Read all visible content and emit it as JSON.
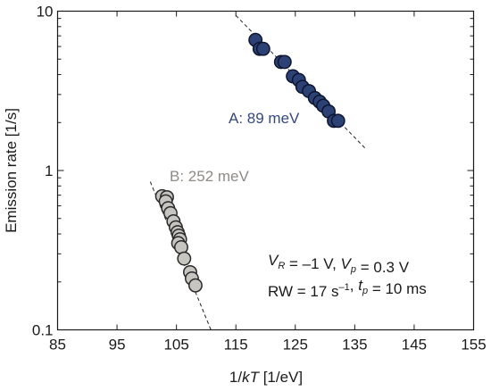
{
  "chart_data": {
    "type": "scatter",
    "title": "",
    "xlabel_pre": "1/",
    "xlabel_italic": "kT",
    "xlabel_post": " [1/eV]",
    "ylabel": "Emission rate [1/s]",
    "xscale": "linear",
    "yscale": "log",
    "xlim": [
      85,
      155
    ],
    "ylim": [
      0.1,
      10
    ],
    "grid": false,
    "x_ticks": [
      85,
      95,
      105,
      115,
      125,
      135,
      145,
      155
    ],
    "y_ticks": [
      {
        "value": 0.1,
        "label": "0.1"
      },
      {
        "value": 1,
        "label": "1"
      },
      {
        "value": 10,
        "label": "10"
      }
    ],
    "series": [
      {
        "label": "A: 89 meV",
        "color": "#2c4275",
        "edge": "#0d1530",
        "label_color": "#34497c",
        "points": [
          [
            118.3,
            6.6
          ],
          [
            119.0,
            5.8
          ],
          [
            119.6,
            5.8
          ],
          [
            122.6,
            4.8
          ],
          [
            123.2,
            4.8
          ],
          [
            124.6,
            3.9
          ],
          [
            125.6,
            3.7
          ],
          [
            126.2,
            3.35
          ],
          [
            127.3,
            3.15
          ],
          [
            128.3,
            2.85
          ],
          [
            129.1,
            2.7
          ],
          [
            129.7,
            2.55
          ],
          [
            130.6,
            2.35
          ],
          [
            131.5,
            2.05
          ],
          [
            132.2,
            2.05
          ]
        ],
        "fit": [
          [
            115.0,
            9.4
          ],
          [
            137.0,
            1.35
          ]
        ]
      },
      {
        "label": "B: 252 meV",
        "color": "#c7c5c0",
        "edge": "#2a2a2a",
        "label_color": "#8f8a86",
        "points": [
          [
            102.6,
            0.69
          ],
          [
            103.4,
            0.68
          ],
          [
            103.2,
            0.64
          ],
          [
            103.6,
            0.58
          ],
          [
            104.0,
            0.54
          ],
          [
            104.5,
            0.48
          ],
          [
            104.9,
            0.44
          ],
          [
            105.2,
            0.41
          ],
          [
            105.4,
            0.39
          ],
          [
            105.6,
            0.37
          ],
          [
            105.3,
            0.35
          ],
          [
            105.8,
            0.33
          ],
          [
            106.3,
            0.28
          ],
          [
            107.3,
            0.23
          ],
          [
            107.6,
            0.21
          ],
          [
            108.2,
            0.19
          ]
        ],
        "fit": [
          [
            100.6,
            0.85
          ],
          [
            110.8,
            0.1
          ]
        ]
      }
    ],
    "annotations": [
      {
        "name": "condition-bias",
        "parts": [
          {
            "t": "V",
            "i": true
          },
          {
            "t": "R",
            "i": true,
            "sub": true
          },
          {
            "t": " = –1 V, "
          },
          {
            "t": "V",
            "i": true
          },
          {
            "t": "p",
            "i": true,
            "sub": true
          },
          {
            "t": " = 0.3 V"
          }
        ]
      },
      {
        "name": "condition-rate-window",
        "parts": [
          {
            "t": "RW = 17 s"
          },
          {
            "t": "–1",
            "sup": true
          },
          {
            "t": ", "
          },
          {
            "t": "t",
            "i": true
          },
          {
            "t": "p",
            "i": true,
            "sub": true
          },
          {
            "t": " = 10 ms"
          }
        ]
      }
    ]
  }
}
